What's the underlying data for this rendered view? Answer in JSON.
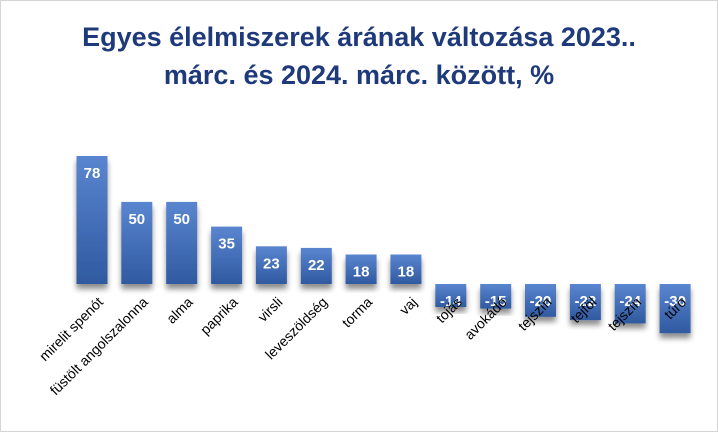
{
  "title_line1": "Egyes élelmiszerek árának változása 2023..",
  "title_line2": "márc. és 2024. márc. között, %",
  "colors": {
    "bar_top": "#5a85d0",
    "bar_bottom": "#2f5aa0",
    "title": "#1f3a7a"
  },
  "chart_data": {
    "type": "bar",
    "title": "Egyes élelmiszerek árának változása 2023.. márc. és 2024. márc. között, %",
    "xlabel": "",
    "ylabel": "",
    "grid": false,
    "legend": "none",
    "categories": [
      "mirelit spenót",
      "füstölt angolszalonna",
      "alma",
      "paprika",
      "virsli",
      "leveszöldség",
      "torma",
      "vaj",
      "tojás",
      "avokádó",
      "tejszín",
      "tejföl",
      "tejszín",
      "túró"
    ],
    "value_labels": [
      "78",
      "50",
      "50",
      "35",
      "23",
      "22",
      "18",
      "18",
      "-14",
      "-15",
      "-20",
      "-22",
      "-24",
      "-30"
    ],
    "values": [
      78,
      50,
      50,
      35,
      23,
      22,
      18,
      18,
      -14,
      -15,
      -20,
      -22,
      -24,
      -30
    ],
    "ylim": [
      -30,
      78
    ]
  }
}
